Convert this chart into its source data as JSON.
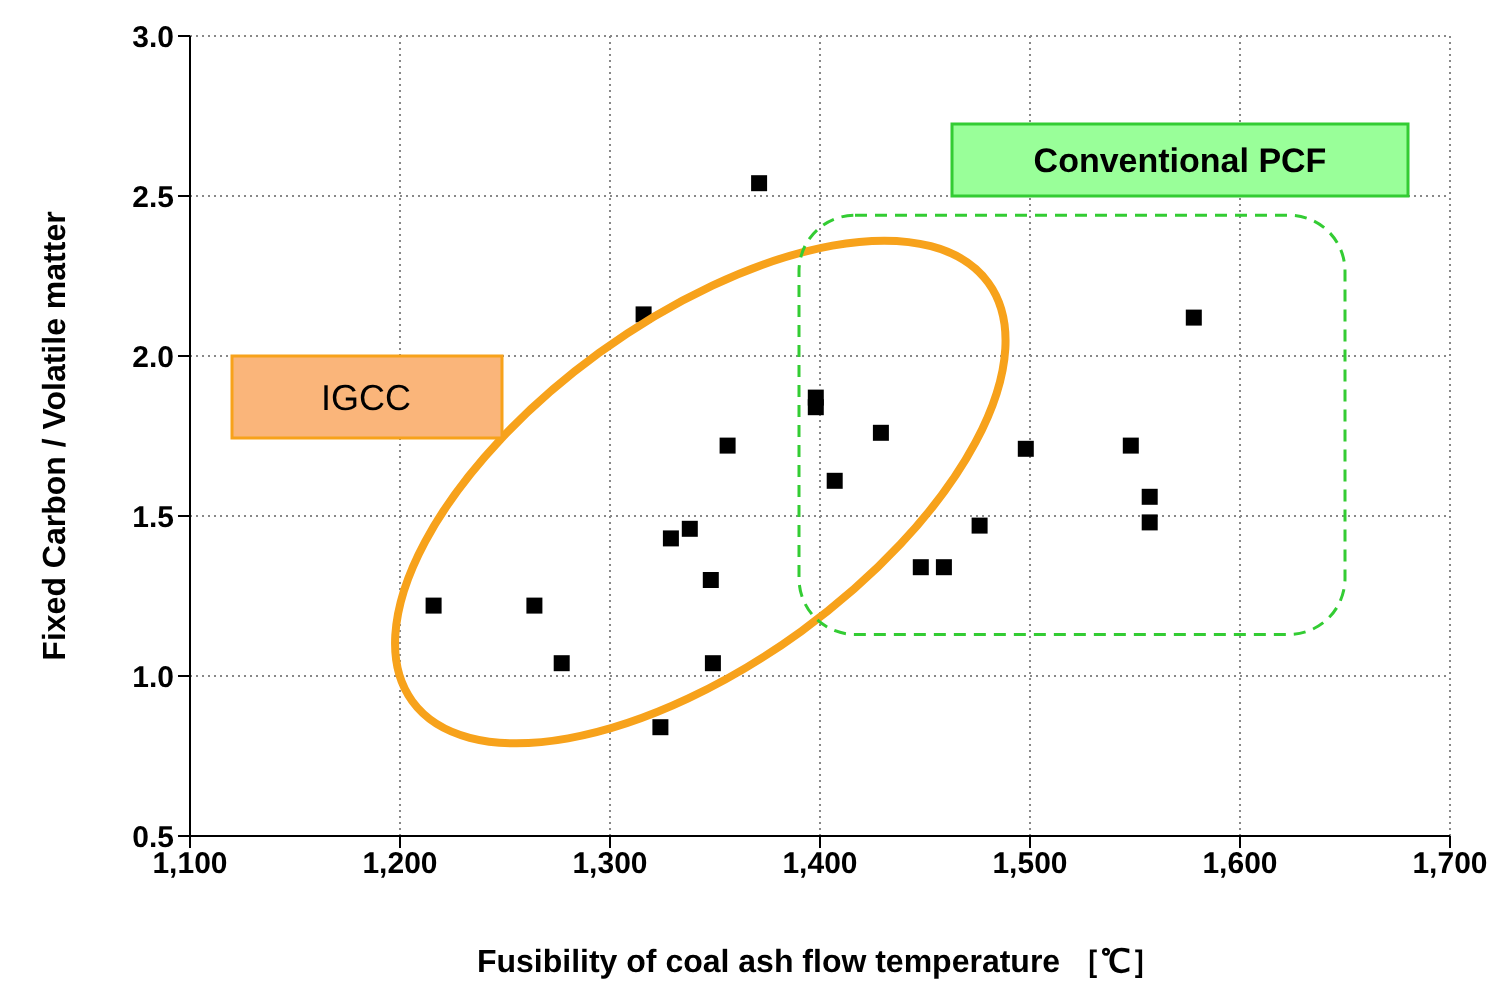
{
  "chart_data": {
    "type": "scatter",
    "xlabel": "Fusibility of coal ash flow temperature ［℃］",
    "ylabel": "Fixed Carbon / Volatile matter",
    "x": [
      1216,
      1264,
      1277,
      1316,
      1324,
      1329,
      1338,
      1348,
      1349,
      1356,
      1371,
      1398,
      1398,
      1407,
      1429,
      1448,
      1459,
      1476,
      1498,
      1548,
      1557,
      1557,
      1578
    ],
    "series": [
      {
        "color": "#000000",
        "values": [
          1.22,
          1.22,
          1.04,
          2.13,
          0.84,
          1.43,
          1.46,
          1.3,
          1.04,
          1.72,
          2.54,
          1.87,
          1.84,
          1.61,
          1.76,
          1.34,
          1.34,
          1.47,
          1.71,
          1.72,
          1.56,
          1.48,
          2.12
        ]
      }
    ],
    "xlim": [
      1100,
      1700
    ],
    "ylim": [
      0.5,
      3.0
    ],
    "xticks": [
      {
        "value": 1100,
        "label": "1,100"
      },
      {
        "value": 1200,
        "label": "1,200"
      },
      {
        "value": 1300,
        "label": "1,300"
      },
      {
        "value": 1400,
        "label": "1,400"
      },
      {
        "value": 1500,
        "label": "1,500"
      },
      {
        "value": 1600,
        "label": "1,600"
      },
      {
        "value": 1700,
        "label": "1,700"
      }
    ],
    "yticks": [
      {
        "value": 0.5,
        "label": "0.5"
      },
      {
        "value": 1.0,
        "label": "1.0"
      },
      {
        "value": 1.5,
        "label": "1.5"
      },
      {
        "value": 2.0,
        "label": "2.0"
      },
      {
        "value": 2.5,
        "label": "2.5"
      },
      {
        "value": 3.0,
        "label": "3.0"
      }
    ],
    "annotations": [
      "IGCC",
      "Conventional PCF"
    ],
    "grid": true,
    "marker": "square"
  }
}
